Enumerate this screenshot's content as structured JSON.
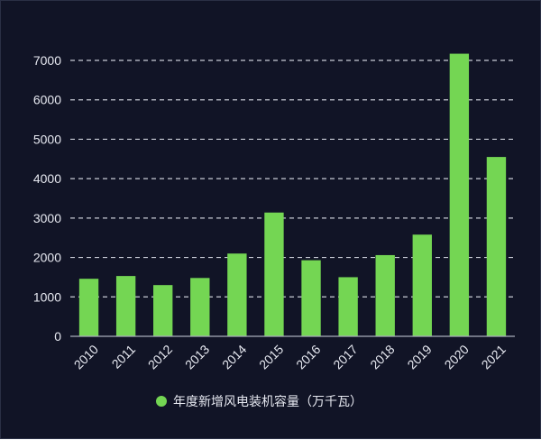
{
  "chart_data": {
    "type": "bar",
    "categories": [
      "2010",
      "2011",
      "2012",
      "2013",
      "2014",
      "2015",
      "2016",
      "2017",
      "2018",
      "2019",
      "2020",
      "2021"
    ],
    "series": [
      {
        "name": "年度新增风电装机容量（万千瓦）",
        "values": [
          1460,
          1530,
          1300,
          1480,
          2100,
          3140,
          1930,
          1500,
          2060,
          2580,
          7170,
          4550
        ]
      }
    ],
    "ylim": [
      0,
      7000
    ],
    "yticks": [
      0,
      1000,
      2000,
      3000,
      4000,
      5000,
      6000,
      7000
    ],
    "grid": true,
    "legend_position": "bottom",
    "colors": {
      "background": "#111426",
      "bar": "#74d653",
      "grid": "#c9ccd6",
      "axis": "#a9adbb",
      "text": "#e6e8f0"
    }
  }
}
